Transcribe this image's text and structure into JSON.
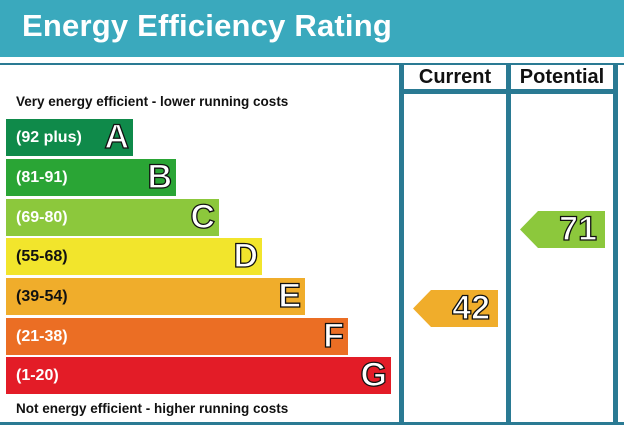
{
  "title": "Energy Efficiency Rating",
  "columns": {
    "current": "Current",
    "potential": "Potential"
  },
  "top_note": "Very energy efficient - lower running costs",
  "bottom_note": "Not energy efficient - higher running costs",
  "bands": [
    {
      "letter": "A",
      "range": "(92 plus)",
      "color": "#0f8a4a"
    },
    {
      "letter": "B",
      "range": "(81-91)",
      "color": "#2aa535"
    },
    {
      "letter": "C",
      "range": "(69-80)",
      "color": "#8cc83c"
    },
    {
      "letter": "D",
      "range": "(55-68)",
      "color": "#f2e52c"
    },
    {
      "letter": "E",
      "range": "(39-54)",
      "color": "#f0ad2b"
    },
    {
      "letter": "F",
      "range": "(21-38)",
      "color": "#eb6e24"
    },
    {
      "letter": "G",
      "range": "(1-20)",
      "color": "#e31c27"
    }
  ],
  "ratings": {
    "current": {
      "value": "42",
      "band": "E",
      "color": "#f0ad2b"
    },
    "potential": {
      "value": "71",
      "band": "C",
      "color": "#8cc83c"
    }
  }
}
